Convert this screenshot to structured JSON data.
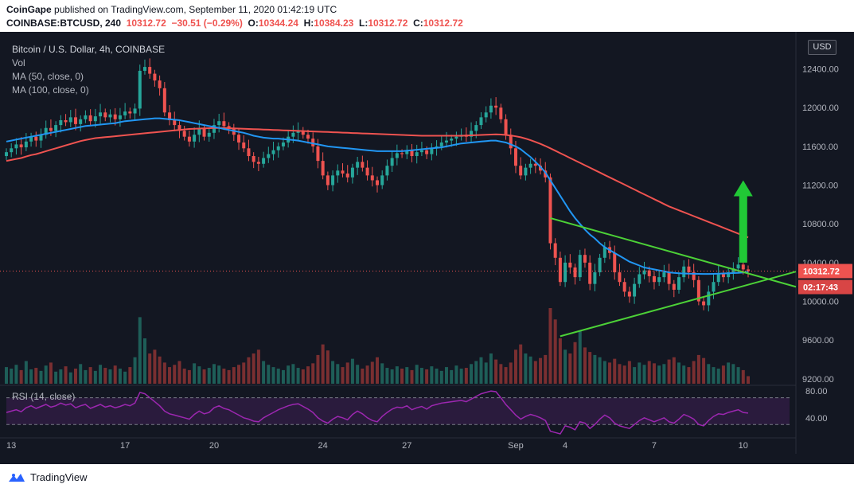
{
  "header": {
    "publisher": "CoinGape",
    "published_text": "published on TradingView.com, September 11, 2020 01:42:19 UTC",
    "symbol": "COINBASE:BTCUSD, 240",
    "last": "10312.72",
    "change": "−30.51 (−0.29%)",
    "open_label": "O:",
    "open": "10344.24",
    "high_label": "H:",
    "high": "10384.23",
    "low_label": "L:",
    "low": "10312.72",
    "close_label": "C:",
    "close": "10312.72"
  },
  "legend": {
    "title": "Bitcoin / U.S. Dollar, 4h, COINBASE",
    "vol": "Vol",
    "ma50": "MA (50, close, 0)",
    "ma100": "MA (100, close, 0)",
    "rsi": "RSI (14, close)"
  },
  "currency_tag": "USD",
  "footer": {
    "brand": "TradingView",
    "logo_icon": "tradingview-logo-icon"
  },
  "colors": {
    "background": "#131722",
    "up": "#26a69a",
    "down": "#ef5350",
    "ma50": "#2196f3",
    "ma100": "#ef5350",
    "trendline": "#4cd137",
    "arrow": "#21c936",
    "rsi": "#9c27b0"
  },
  "chart_data": {
    "type": "candlestick",
    "price_axis_ticks": [
      "12400.00",
      "12000.00",
      "11600.00",
      "11200.00",
      "10800.00",
      "10400.00",
      "10000.00",
      "9600.00",
      "9200.00"
    ],
    "price_ylim": [
      9150,
      12700
    ],
    "time_axis_labels": [
      "13",
      "17",
      "20",
      "24",
      "27",
      "Sep",
      "4",
      "7",
      "10"
    ],
    "last_price_label": "10312.72",
    "countdown_label": "02:17:43",
    "rsi_axis_ticks": [
      "80.00",
      "40.00"
    ],
    "rsi_ylim": [
      10,
      85
    ],
    "rsi_bands": [
      70,
      30
    ],
    "close": [
      11540,
      11580,
      11620,
      11590,
      11650,
      11700,
      11660,
      11720,
      11790,
      11760,
      11820,
      11870,
      11850,
      11900,
      11830,
      11880,
      11920,
      11860,
      11910,
      11950,
      11900,
      11930,
      11880,
      11920,
      11960,
      11940,
      11990,
      12380,
      12420,
      12350,
      12280,
      12200,
      11950,
      11870,
      11820,
      11760,
      11700,
      11650,
      11720,
      11780,
      11700,
      11740,
      11820,
      11860,
      11810,
      11780,
      11720,
      11640,
      11580,
      11500,
      11440,
      11420,
      11480,
      11520,
      11560,
      11600,
      11640,
      11700,
      11740,
      11760,
      11720,
      11680,
      11600,
      11450,
      11300,
      11200,
      11300,
      11350,
      11320,
      11280,
      11380,
      11440,
      11380,
      11300,
      11250,
      11200,
      11300,
      11400,
      11480,
      11530,
      11520,
      11560,
      11500,
      11540,
      11560,
      11520,
      11580,
      11600,
      11640,
      11660,
      11680,
      11700,
      11720,
      11700,
      11760,
      11820,
      11900,
      11950,
      12020,
      12000,
      11880,
      11720,
      11580,
      11400,
      11300,
      11380,
      11420,
      11400,
      11350,
      11280,
      10600,
      10450,
      10200,
      10400,
      10350,
      10250,
      10480,
      10400,
      10180,
      10300,
      10450,
      10560,
      10500,
      10300,
      10200,
      10100,
      10050,
      10180,
      10280,
      10320,
      10260,
      10200,
      10250,
      10300,
      10180,
      10120,
      10250,
      10360,
      10300,
      10220,
      10000,
      9960,
      10100,
      10200,
      10280,
      10250,
      10300,
      10340,
      10380,
      10330,
      10312
    ],
    "volume": [
      22,
      20,
      25,
      18,
      30,
      19,
      21,
      17,
      24,
      28,
      16,
      19,
      23,
      15,
      20,
      26,
      18,
      22,
      17,
      25,
      21,
      19,
      24,
      20,
      16,
      22,
      35,
      88,
      60,
      40,
      45,
      36,
      28,
      22,
      25,
      30,
      20,
      18,
      27,
      23,
      19,
      21,
      26,
      24,
      20,
      18,
      22,
      25,
      28,
      35,
      40,
      45,
      30,
      25,
      22,
      20,
      18,
      24,
      26,
      21,
      19,
      23,
      27,
      38,
      52,
      44,
      30,
      26,
      22,
      28,
      33,
      25,
      20,
      24,
      29,
      35,
      27,
      21,
      19,
      23,
      20,
      22,
      18,
      25,
      21,
      19,
      23,
      20,
      17,
      22,
      18,
      24,
      20,
      21,
      26,
      30,
      35,
      28,
      40,
      32,
      26,
      22,
      28,
      45,
      52,
      40,
      36,
      30,
      34,
      38,
      100,
      85,
      60,
      45,
      40,
      55,
      70,
      48,
      42,
      38,
      35,
      30,
      28,
      33,
      26,
      24,
      30,
      22,
      28,
      25,
      30,
      27,
      24,
      26,
      32,
      35,
      28,
      24,
      22,
      30,
      38,
      34,
      26,
      22,
      20,
      24,
      28,
      26,
      22,
      18,
      10
    ],
    "ma50": [
      11650,
      11660,
      11670,
      11680,
      11690,
      11700,
      11710,
      11720,
      11730,
      11740,
      11750,
      11760,
      11770,
      11780,
      11790,
      11800,
      11810,
      11815,
      11820,
      11825,
      11830,
      11835,
      11840,
      11850,
      11860,
      11865,
      11870,
      11875,
      11880,
      11885,
      11890,
      11890,
      11885,
      11880,
      11875,
      11870,
      11860,
      11850,
      11840,
      11830,
      11820,
      11810,
      11800,
      11790,
      11780,
      11770,
      11760,
      11750,
      11740,
      11725,
      11710,
      11700,
      11690,
      11685,
      11680,
      11680,
      11675,
      11670,
      11665,
      11660,
      11650,
      11640,
      11630,
      11620,
      11610,
      11600,
      11595,
      11590,
      11585,
      11580,
      11575,
      11570,
      11565,
      11560,
      11555,
      11550,
      11550,
      11550,
      11550,
      11550,
      11550,
      11555,
      11560,
      11565,
      11570,
      11575,
      11580,
      11585,
      11590,
      11600,
      11610,
      11620,
      11630,
      11635,
      11640,
      11645,
      11650,
      11655,
      11660,
      11660,
      11650,
      11640,
      11620,
      11600,
      11570,
      11530,
      11490,
      11440,
      11390,
      11330,
      11250,
      11170,
      11090,
      11010,
      10930,
      10860,
      10800,
      10740,
      10690,
      10650,
      10600,
      10560,
      10530,
      10500,
      10470,
      10440,
      10410,
      10390,
      10370,
      10350,
      10340,
      10330,
      10320,
      10310,
      10300,
      10295,
      10290,
      10288,
      10286,
      10285,
      10284,
      10283,
      10283,
      10284,
      10286,
      10288,
      10290,
      10292,
      10295,
      10298,
      10302
    ],
    "ma100": [
      11450,
      11460,
      11470,
      11480,
      11495,
      11510,
      11520,
      11535,
      11550,
      11565,
      11580,
      11595,
      11610,
      11625,
      11640,
      11655,
      11665,
      11675,
      11685,
      11690,
      11695,
      11700,
      11705,
      11710,
      11715,
      11720,
      11725,
      11730,
      11735,
      11740,
      11745,
      11750,
      11755,
      11760,
      11765,
      11770,
      11775,
      11780,
      11782,
      11784,
      11786,
      11788,
      11790,
      11790,
      11790,
      11788,
      11786,
      11784,
      11782,
      11780,
      11778,
      11776,
      11774,
      11772,
      11770,
      11768,
      11766,
      11764,
      11762,
      11760,
      11758,
      11756,
      11754,
      11752,
      11750,
      11748,
      11746,
      11744,
      11742,
      11740,
      11738,
      11736,
      11734,
      11732,
      11730,
      11728,
      11726,
      11724,
      11722,
      11720,
      11718,
      11716,
      11714,
      11712,
      11710,
      11710,
      11710,
      11710,
      11710,
      11710,
      11710,
      11710,
      11710,
      11712,
      11714,
      11716,
      11718,
      11720,
      11722,
      11724,
      11722,
      11718,
      11712,
      11704,
      11694,
      11680,
      11664,
      11646,
      11626,
      11604,
      11580,
      11555,
      11530,
      11505,
      11480,
      11455,
      11430,
      11405,
      11380,
      11355,
      11330,
      11305,
      11280,
      11255,
      11230,
      11205,
      11180,
      11155,
      11130,
      11105,
      11080,
      11055,
      11030,
      11005,
      10980,
      10960,
      10940,
      10920,
      10900,
      10880,
      10860,
      10840,
      10820,
      10800,
      10780,
      10760,
      10740,
      10720,
      10700,
      10680,
      10660
    ],
    "rsi": [
      48,
      50,
      52,
      49,
      55,
      58,
      54,
      57,
      60,
      56,
      58,
      62,
      59,
      61,
      55,
      58,
      60,
      54,
      57,
      60,
      56,
      58,
      55,
      57,
      60,
      58,
      62,
      78,
      76,
      70,
      64,
      58,
      50,
      46,
      44,
      42,
      40,
      38,
      45,
      50,
      46,
      48,
      55,
      58,
      54,
      52,
      48,
      44,
      40,
      38,
      35,
      34,
      40,
      44,
      48,
      52,
      55,
      58,
      60,
      61,
      57,
      53,
      48,
      40,
      35,
      32,
      38,
      42,
      40,
      37,
      45,
      50,
      46,
      40,
      36,
      34,
      42,
      48,
      53,
      56,
      55,
      58,
      52,
      55,
      57,
      53,
      58,
      60,
      62,
      63,
      64,
      65,
      66,
      64,
      68,
      72,
      76,
      78,
      80,
      79,
      70,
      60,
      52,
      44,
      38,
      42,
      45,
      43,
      40,
      36,
      20,
      18,
      16,
      28,
      26,
      22,
      34,
      32,
      24,
      30,
      38,
      44,
      40,
      32,
      28,
      26,
      24,
      30,
      36,
      40,
      37,
      34,
      37,
      40,
      34,
      32,
      38,
      45,
      42,
      38,
      30,
      28,
      36,
      42,
      46,
      45,
      48,
      50,
      52,
      48,
      47
    ],
    "trendlines": [
      {
        "name": "upper",
        "points": [
          [
            110,
            10860
          ],
          [
            152,
            10260
          ]
        ]
      },
      {
        "name": "lower",
        "points": [
          [
            112,
            9640
          ],
          [
            152,
            10200
          ]
        ]
      }
    ],
    "annotation": {
      "type": "arrow-up",
      "x": 149,
      "from": 10400,
      "to": 11250
    }
  }
}
